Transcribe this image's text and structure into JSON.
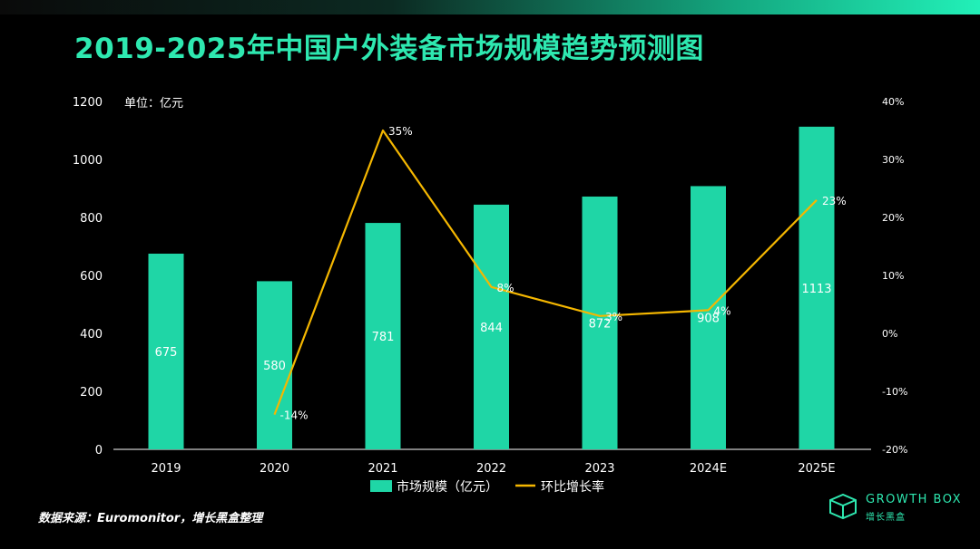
{
  "title": "2019-2025年中国户外装备市场规模趋势预测图",
  "unit_label": "单位：亿元",
  "source": "数据来源：Euromonitor，增长黑盒整理",
  "brand": {
    "name": "GROWTH BOX",
    "sub": "增长黑盒"
  },
  "colors": {
    "bar": "#1fd6a6",
    "line": "#f5b700",
    "title": "#2ee8b0",
    "axis": "#ffffff"
  },
  "chart_data": {
    "type": "bar",
    "categories": [
      "2019",
      "2020",
      "2021",
      "2022",
      "2023",
      "2024E",
      "2025E"
    ],
    "series": [
      {
        "name": "市场规模（亿元）",
        "type": "bar",
        "axis": "left",
        "values": [
          675,
          580,
          781,
          844,
          872,
          908,
          1113
        ],
        "labels": [
          "675",
          "580",
          "781",
          "844",
          "872",
          "908",
          "1113"
        ]
      },
      {
        "name": "环比增长率",
        "type": "line",
        "axis": "right",
        "values": [
          null,
          -14,
          35,
          8,
          3,
          4,
          23
        ],
        "labels": [
          "",
          "-14%",
          "35%",
          "8%",
          "3%",
          "4%",
          "23%"
        ]
      }
    ],
    "y_left": {
      "min": 0,
      "max": 1200,
      "ticks": [
        0,
        200,
        400,
        600,
        800,
        1000,
        1200
      ],
      "tick_labels": [
        "0",
        "200",
        "400",
        "600",
        "800",
        "1000",
        "1200"
      ]
    },
    "y_right": {
      "min": -20,
      "max": 40,
      "ticks": [
        -20,
        -10,
        0,
        10,
        20,
        30,
        40
      ],
      "tick_labels": [
        "-20%",
        "-10%",
        "0%",
        "10%",
        "20%",
        "30%",
        "40%"
      ]
    },
    "grid": false,
    "legend": "bottom-center"
  }
}
